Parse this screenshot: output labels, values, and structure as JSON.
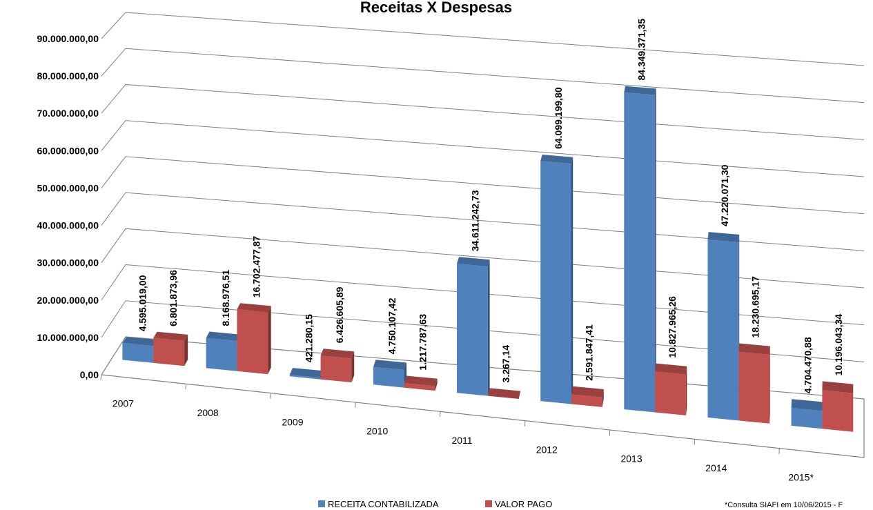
{
  "chart_data": {
    "type": "bar",
    "title": "Receitas X Despesas",
    "xlabel": "",
    "ylabel": "",
    "categories": [
      "2007",
      "2008",
      "2009",
      "2010",
      "2011",
      "2012",
      "2013",
      "2014",
      "2015*"
    ],
    "series": [
      {
        "name": "RECEITA CONTABILIZADA",
        "color": "#4F81BD",
        "values": [
          4595019.0,
          8168976.51,
          421280.15,
          4750107.42,
          34611242.73,
          64099199.8,
          84349371.35,
          47220071.3,
          4704470.88
        ],
        "labels": [
          "4.595.019,00",
          "8.168.976,51",
          "421.280,15",
          "4.750.107,42",
          "34.611.242,73",
          "64.099.199,80",
          "84.349.371,35",
          "47.220.071,30",
          "4.704.470,88"
        ]
      },
      {
        "name": "VALOR PAGO",
        "color": "#C0504D",
        "values": [
          6801873.96,
          16702477.87,
          6426605.89,
          1217787.63,
          3267.14,
          2591847.41,
          10827965.26,
          18230695.17,
          10196043.34
        ],
        "labels": [
          "6.801.873,96",
          "16.702.477,87",
          "6.426.605,89",
          "1.217.787,63",
          "3.267,14",
          "2.591.847,41",
          "10.827.965,26",
          "18.230.695,17",
          "10.196.043,34"
        ]
      }
    ],
    "yticks": [
      0,
      10000000,
      20000000,
      30000000,
      40000000,
      50000000,
      60000000,
      70000000,
      80000000,
      90000000
    ],
    "ytick_labels": [
      "0,00",
      "10.000.000,00",
      "20.000.000,00",
      "30.000.000,00",
      "40.000.000,00",
      "50.000.000,00",
      "60.000.000,00",
      "70.000.000,00",
      "80.000.000,00",
      "90.000.000,00"
    ],
    "ylim": [
      0,
      90000000
    ],
    "grid": true,
    "legend_position": "bottom",
    "footnote": "*Consulta SIAFI em 10/06/2015 - F"
  }
}
